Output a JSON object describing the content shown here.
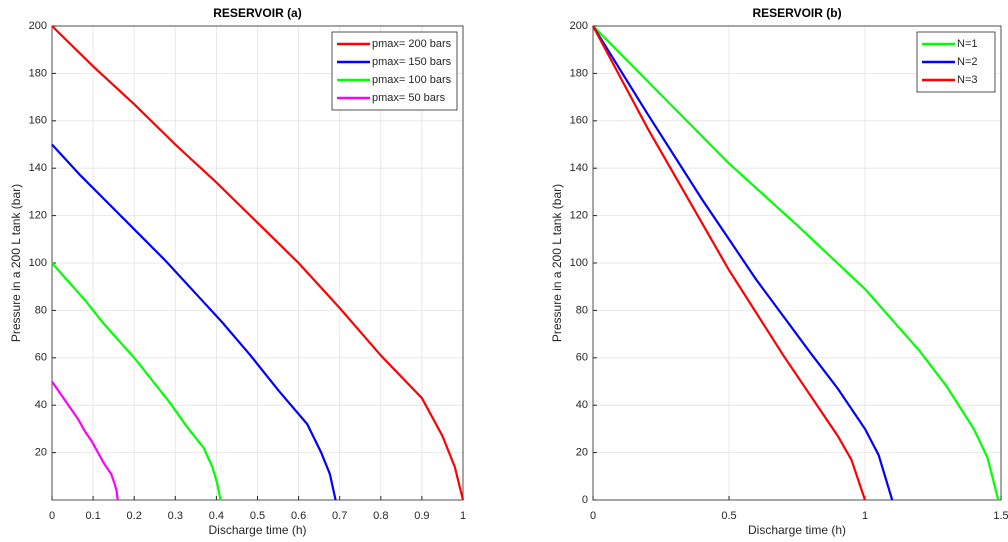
{
  "chart_data": [
    {
      "type": "line",
      "title": "RESERVOIR (a)",
      "xlabel": "Discharge time (h)",
      "ylabel": "Pressure in a 200 L tank  (bar)",
      "xlim": [
        0,
        1
      ],
      "xticks": [
        0,
        0.1,
        0.2,
        0.3,
        0.4,
        0.5,
        0.6,
        0.7,
        0.8,
        0.9,
        1
      ],
      "ylim": [
        0,
        200
      ],
      "yticks": [
        20,
        40,
        60,
        80,
        100,
        120,
        140,
        160,
        180,
        200
      ],
      "grid": true,
      "legend": "upper right",
      "series": [
        {
          "name": "pmax= 200 bars",
          "color": "#ff0000",
          "x": [
            0,
            0.1,
            0.2,
            0.3,
            0.4,
            0.5,
            0.6,
            0.7,
            0.8,
            0.9,
            0.95,
            0.98,
            1
          ],
          "values": [
            200,
            183,
            167,
            150,
            134,
            117,
            100,
            81,
            61,
            43,
            27,
            14,
            0
          ]
        },
        {
          "name": "pmax= 150 bars",
          "color": "#0000ff",
          "x": [
            0,
            0.069,
            0.138,
            0.207,
            0.276,
            0.345,
            0.414,
            0.483,
            0.552,
            0.621,
            0.655,
            0.676,
            0.69
          ],
          "values": [
            150,
            137,
            125,
            113,
            101,
            88,
            75,
            61,
            46,
            32,
            20,
            11,
            0
          ]
        },
        {
          "name": "pmax= 100 bars",
          "color": "#00ff00",
          "x": [
            0,
            0.041,
            0.082,
            0.123,
            0.164,
            0.205,
            0.246,
            0.287,
            0.328,
            0.369,
            0.39,
            0.402,
            0.41
          ],
          "values": [
            100,
            92,
            84,
            75,
            67,
            59,
            50,
            41,
            31,
            22,
            14,
            7,
            0
          ]
        },
        {
          "name": "pmax= 50 bars",
          "color": "#ff00ff",
          "x": [
            0,
            0.016,
            0.032,
            0.048,
            0.064,
            0.08,
            0.096,
            0.112,
            0.128,
            0.144,
            0.152,
            0.157,
            0.16
          ],
          "values": [
            50,
            46,
            42,
            38,
            34,
            29,
            25,
            20,
            15,
            11,
            7,
            4,
            0
          ]
        }
      ]
    },
    {
      "type": "line",
      "title": "RESERVOIR (b)",
      "xlabel": "Discharge time (h)",
      "ylabel": "Pressure in a 200 L tank  (bar)",
      "xlim": [
        0,
        1.5
      ],
      "xticks": [
        0,
        0.5,
        1,
        1.5
      ],
      "ylim": [
        0,
        200
      ],
      "yticks": [
        0,
        20,
        40,
        60,
        80,
        100,
        120,
        140,
        160,
        180,
        200
      ],
      "grid": true,
      "legend": "upper right",
      "series": [
        {
          "name": "N=1",
          "color": "#00ff00",
          "x": [
            0,
            0.25,
            0.5,
            0.75,
            1.0,
            1.2,
            1.3,
            1.4,
            1.45,
            1.49
          ],
          "values": [
            200,
            171,
            142,
            116,
            89,
            63,
            48,
            30,
            18,
            0
          ]
        },
        {
          "name": "N=2",
          "color": "#0000ff",
          "x": [
            0,
            0.2,
            0.4,
            0.5,
            0.6,
            0.8,
            0.9,
            1.0,
            1.05,
            1.1
          ],
          "values": [
            200,
            163,
            127,
            110,
            93,
            62,
            47,
            30,
            19,
            0
          ]
        },
        {
          "name": "N=3",
          "color": "#ff0000",
          "x": [
            0,
            0.2,
            0.4,
            0.5,
            0.6,
            0.7,
            0.8,
            0.9,
            0.95,
            1.0
          ],
          "values": [
            200,
            157,
            117,
            97,
            79,
            61,
            44,
            27,
            17,
            0
          ]
        }
      ]
    }
  ]
}
